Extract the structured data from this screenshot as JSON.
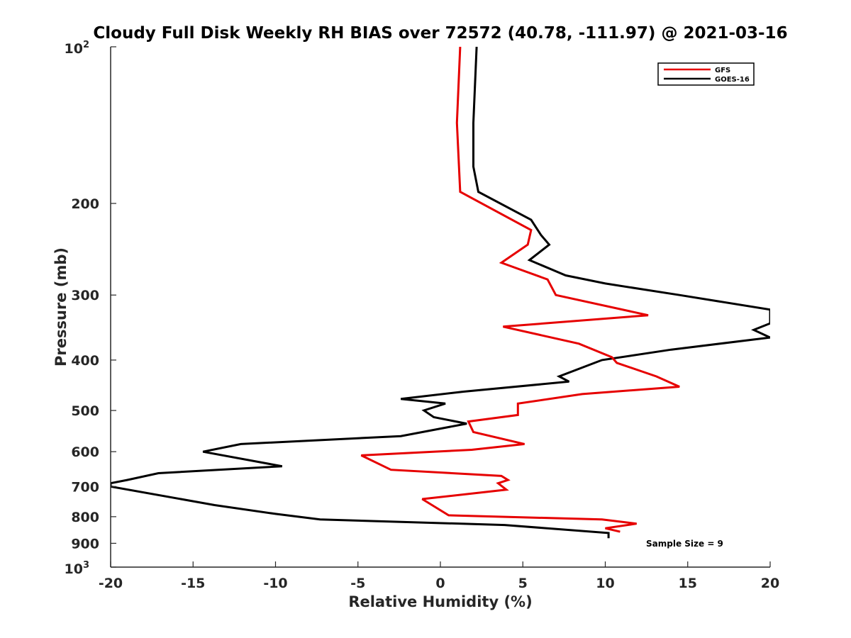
{
  "chart_data": {
    "type": "line",
    "title": "Cloudy Full Disk Weekly RH BIAS over 72572 (40.78, -111.97) @ 2021-03-16",
    "xlabel": "Relative Humidity (%)",
    "ylabel": "Pressure (mb)",
    "xlim": [
      -20,
      20
    ],
    "ylim": [
      100,
      1000
    ],
    "yscale": "log",
    "y_reversed": true,
    "x_ticks": [
      -20,
      -15,
      -10,
      -5,
      0,
      5,
      10,
      15,
      20
    ],
    "x_tick_labels": [
      "-20",
      "-15",
      "-10",
      "-5",
      "0",
      "5",
      "10",
      "15",
      "20"
    ],
    "y_ticks": [
      200,
      300,
      400,
      500,
      600,
      700,
      800,
      900
    ],
    "y_tick_labels": [
      "200",
      "300",
      "400",
      "500",
      "600",
      "700",
      "800",
      "900"
    ],
    "y_limit_labels": {
      "top_base": "10",
      "top_exp": "2",
      "bottom_base": "10",
      "bottom_exp": "3"
    },
    "legend_position": "top-right",
    "annotation": "Sample Size = 9",
    "series": [
      {
        "name": "GFS",
        "color": "#e60000",
        "pressure": [
          100,
          140,
          190,
          225,
          240,
          260,
          280,
          300,
          328,
          345,
          372,
          395,
          405,
          430,
          450,
          465,
          485,
          510,
          525,
          550,
          580,
          595,
          610,
          650,
          668,
          680,
          690,
          710,
          740,
          795,
          810,
          825,
          842,
          855
        ],
        "values": [
          1.2,
          1.0,
          1.2,
          5.5,
          5.3,
          3.7,
          6.5,
          7.0,
          12.6,
          3.8,
          8.4,
          10.4,
          10.7,
          13.1,
          14.5,
          8.6,
          4.7,
          4.7,
          1.7,
          2.0,
          5.1,
          1.9,
          -4.8,
          -3.0,
          3.7,
          4.1,
          3.5,
          4.0,
          -1.1,
          0.5,
          9.8,
          11.9,
          10.0,
          10.9
        ]
      },
      {
        "name": "GOES-16",
        "color": "#000000",
        "pressure": [
          100,
          140,
          170,
          190,
          215,
          230,
          240,
          257,
          275,
          285,
          300,
          320,
          340,
          350,
          362,
          382,
          400,
          430,
          440,
          460,
          475,
          485,
          500,
          515,
          530,
          560,
          580,
          600,
          640,
          660,
          680,
          690,
          700,
          760,
          790,
          810,
          830,
          860,
          880
        ],
        "values": [
          2.2,
          2.0,
          2.0,
          2.3,
          5.5,
          6.1,
          6.6,
          5.4,
          7.6,
          10.0,
          14.5,
          20.0,
          20.0,
          19.0,
          20.0,
          14.0,
          9.8,
          7.2,
          7.8,
          1.4,
          -2.4,
          0.3,
          -1.0,
          -0.4,
          1.6,
          -2.4,
          -12.1,
          -14.4,
          -9.6,
          -17.1,
          -19.0,
          -20.0,
          -20.0,
          -13.7,
          -10.0,
          -7.3,
          3.9,
          10.2,
          10.2
        ]
      }
    ]
  }
}
